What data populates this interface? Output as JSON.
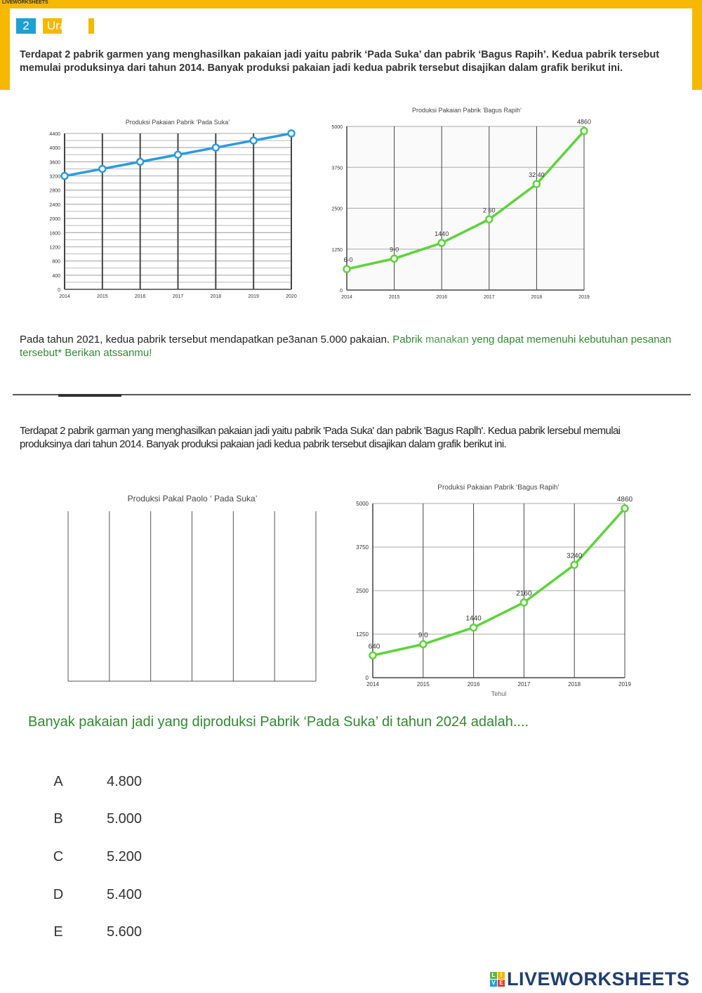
{
  "header": {
    "watermark": "LIVEWORKSHEETS",
    "question_number": "2",
    "question_type": "Ura"
  },
  "intro_1": "Terdapat 2 pabrik garmen yang menghasilkan pakaian jadi yaitu pabrik ‘Pada Suka’ dan pabrik ‘Bagus Rapih’. Kedua pabrik tersebut memulai produksinya dari tahun 2014. Banyak produksi pakaian jadi kedua pabrik tersebut disajikan dalam grafik berikut ini.",
  "task": {
    "part1": "Pada tahun 2021, kedua pabrik tersebut mendapatkan pe3anan 5.000 pakaian.",
    "part2": "Pabrik",
    "part3": "manakan",
    "part4": "yeng dapat memenuhi kebutuhan pesanan tersebut* Berikan atssanmu!"
  },
  "intro_2": "Terdapat 2 pabrik garman yang menghasilkan pakaian jadi yaitu pabrik 'Pada Suka' dan pabrik 'Bagus Raplh'. Kedua pabrik lersebul memulai produksinya dari tahun 2014. Banyak produksi pakaian jadi kedua pabrik tersebut disajikan dalam grafik berikut ini.",
  "chart_data": [
    {
      "type": "line",
      "title": "Produksi Pakaian Pabrik ‘Pada Suka’",
      "xlabel": "",
      "ylabel": "",
      "x": [
        "2014",
        "2015",
        "2016",
        "2017",
        "2018",
        "2019",
        "2020"
      ],
      "series": [
        {
          "values": [
            3200,
            3400,
            3600,
            3800,
            4000,
            4200,
            4400
          ]
        }
      ],
      "yticks": [
        "0",
        "400",
        "800",
        "1200",
        "1600",
        "2000",
        "2400",
        "2800",
        "3200",
        "3600",
        "4000",
        "4400"
      ],
      "ylim": [
        0,
        4400
      ],
      "grid": true,
      "color": "#2a9be0"
    },
    {
      "type": "line",
      "title": "Produksi Pakaian Pabrik ‘Bagus Rapih’",
      "xlabel": "",
      "ylabel": "",
      "x": [
        "2014",
        "2015",
        "2016",
        "2017",
        "2018",
        "2019"
      ],
      "series": [
        {
          "values": [
            640,
            960,
            1440,
            2160,
            3240,
            4860
          ]
        }
      ],
      "data_labels": [
        "6-0",
        "9-0",
        "1440",
        "2 60",
        "32 40",
        "4860"
      ],
      "yticks": [
        "0",
        "1250",
        "2500",
        "3750",
        "5000"
      ],
      "ylim": [
        0,
        5000
      ],
      "grid": true,
      "color": "#5cd43a"
    },
    {
      "type": "line",
      "title": "Produksi Pakal Paolo ‘ Pada Suka’",
      "x": [],
      "series": [],
      "grid": true
    },
    {
      "type": "line",
      "title": "Produksi Pakaian Pabrik ‘Bagus Rapih’",
      "xlabel": "Tehul",
      "ylabel": "",
      "x": [
        "2014",
        "2015",
        "2016",
        "2017",
        "2018",
        "2019"
      ],
      "series": [
        {
          "values": [
            640,
            960,
            1440,
            2160,
            3240,
            4860
          ]
        }
      ],
      "data_labels": [
        "640",
        "9 0",
        "1440",
        "2160",
        "3240",
        "4860"
      ],
      "yticks": [
        "0",
        "1250",
        "2500",
        "3750",
        "5000"
      ],
      "ylim": [
        0,
        5000
      ],
      "grid": true,
      "color": "#5cd43a"
    }
  ],
  "question": "Banyak pakaian jadi yang diproduksi Pabrik ‘Pada Suka’ di tahun 2024 adalah....",
  "options": [
    {
      "letter": "A",
      "value": "4.800"
    },
    {
      "letter": "B",
      "value": "5.000"
    },
    {
      "letter": "C",
      "value": "5.200"
    },
    {
      "letter": "D",
      "value": "5.400"
    },
    {
      "letter": "E",
      "value": "5.600"
    }
  ],
  "footer": {
    "logo_text": "LIVEWORKSHEETS",
    "logo_letters": [
      "L",
      "I",
      "V",
      "E"
    ]
  }
}
